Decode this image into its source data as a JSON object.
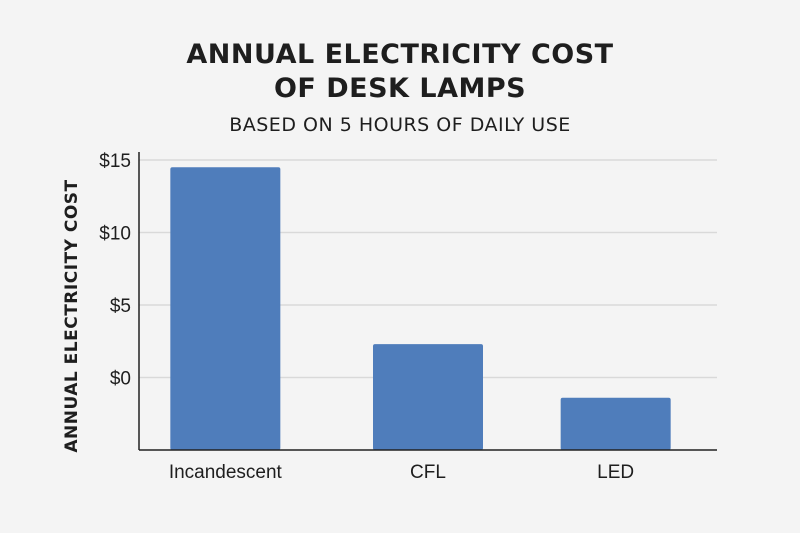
{
  "chart_data": {
    "type": "bar",
    "title_lines": [
      "ANNUAL ELECTRICITY COST",
      "OF DESK LAMPS"
    ],
    "subtitle": "BASED ON 5 HOURS OF DAILY USE",
    "xlabel": "",
    "ylabel": "ANNUAL ELECTRICITY COST",
    "categories": [
      "Incandescent",
      "CFL",
      "LED"
    ],
    "values": [
      14.5,
      2.3,
      -1.4
    ],
    "ylim": [
      -5,
      15
    ],
    "yticks": [
      0,
      5,
      10,
      15
    ],
    "ytick_labels": [
      "$0",
      "$5",
      "$10",
      "$15"
    ],
    "grid": true,
    "bar_color": "#4f7dbb"
  }
}
